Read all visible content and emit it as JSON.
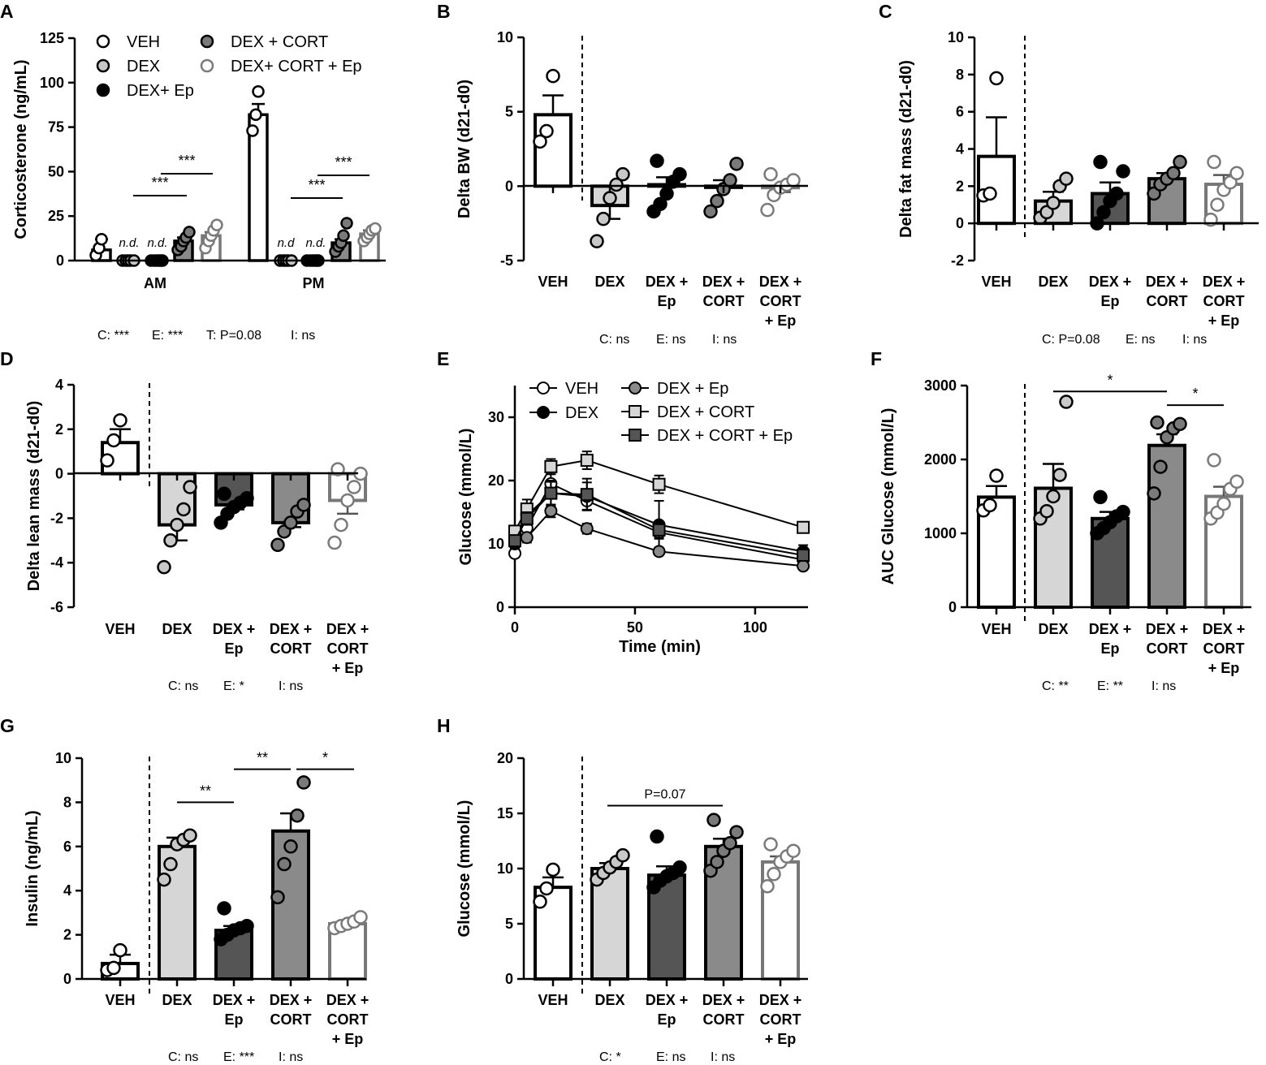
{
  "colors": {
    "VEH": "#ffffff",
    "DEX": "#d6d6d6",
    "DEX+Ep": "#555555",
    "DEX+CORT": "#8a8a8a",
    "DEX+CORT+Ep": "#ffffff",
    "axis": "#000000"
  },
  "chart_data": [
    {
      "id": "A",
      "letter": "A",
      "type": "bar",
      "ylabel": "Corticosterone (ng/mL)",
      "ylim": [
        0,
        125
      ],
      "yticks": [
        "0",
        "25",
        "50",
        "75",
        "100",
        "125"
      ],
      "groups": [
        "AM",
        "PM"
      ],
      "series": [
        {
          "name": "VEH",
          "means": [
            6,
            82
          ],
          "points": [
            [
              3,
              7,
              12
            ],
            [
              73,
              82,
              95
            ]
          ]
        },
        {
          "name": "DEX",
          "means": [
            0,
            0
          ],
          "points": [
            [
              0,
              0,
              0,
              0,
              0
            ],
            [
              0,
              0,
              0,
              0,
              0
            ]
          ]
        },
        {
          "name": "DEX+ Ep",
          "means": [
            0,
            0
          ],
          "points": [
            [
              0,
              0,
              0,
              0,
              0,
              0
            ],
            [
              0,
              0,
              0,
              0,
              0,
              0
            ]
          ]
        },
        {
          "name": "DEX + CORT",
          "means": [
            11,
            10
          ],
          "points": [
            [
              6,
              8,
              11,
              13,
              16
            ],
            [
              5,
              8,
              10,
              14,
              21
            ]
          ]
        },
        {
          "name": "DEX+ CORT + Ep",
          "means": [
            14,
            15
          ],
          "points": [
            [
              7,
              11,
              14,
              17,
              20
            ],
            [
              11,
              13,
              15,
              17,
              18
            ]
          ]
        }
      ],
      "legend": [
        "VEH",
        "DEX",
        "DEX+ Ep",
        "DEX + CORT",
        "DEX+ CORT + Ep"
      ],
      "nd": [
        "n.d.",
        "n.d.",
        "n.d",
        "n.d."
      ],
      "sig": [
        "***",
        "***",
        "***",
        "***"
      ],
      "stats": [
        "C: ***",
        "E: ***",
        "T: P=0.08",
        "I: ns"
      ]
    },
    {
      "id": "B",
      "letter": "B",
      "type": "bar",
      "ylabel": "Delta BW (d21-d0)",
      "ylim": [
        -5,
        10
      ],
      "yticks": [
        "-5",
        "0",
        "5",
        "10"
      ],
      "categories": [
        [
          "VEH"
        ],
        [
          "DEX"
        ],
        [
          "DEX +",
          "Ep"
        ],
        [
          "DEX +",
          "CORT"
        ],
        [
          "DEX +",
          "CORT",
          "+ Ep"
        ]
      ],
      "means": [
        4.8,
        -1.3,
        0.1,
        0.0,
        -0.1
      ],
      "sems": [
        1.3,
        0.9,
        0.5,
        0.4,
        0.3
      ],
      "points": [
        [
          3,
          3.7,
          7.4
        ],
        [
          -3.7,
          -2.2,
          -0.8,
          0.1,
          0.8
        ],
        [
          -1.7,
          -1.2,
          -0.5,
          0.3,
          0.8,
          1.7
        ],
        [
          -1.7,
          -1,
          -0.2,
          0.4,
          1.5
        ],
        [
          -1.6,
          -0.6,
          -0.1,
          0.1,
          0.4,
          0.8
        ]
      ],
      "stats": [
        "C: ns",
        "E: ns",
        "I: ns"
      ]
    },
    {
      "id": "C",
      "letter": "C",
      "type": "bar",
      "ylabel": "Delta fat mass (d21-d0)",
      "ylim": [
        -2,
        10
      ],
      "yticks": [
        "-2",
        "0",
        "2",
        "4",
        "6",
        "8",
        "10"
      ],
      "categories": [
        [
          "VEH"
        ],
        [
          "DEX"
        ],
        [
          "DEX +",
          "Ep"
        ],
        [
          "DEX +",
          "CORT"
        ],
        [
          "DEX +",
          "CORT",
          "+ Ep"
        ]
      ],
      "means": [
        3.6,
        1.2,
        1.6,
        2.4,
        2.1
      ],
      "sems": [
        2.1,
        0.5,
        0.6,
        0.3,
        0.5
      ],
      "points": [
        [
          1.5,
          1.6,
          7.8
        ],
        [
          0.3,
          0.6,
          1.1,
          2,
          2.4
        ],
        [
          0,
          0.6,
          1.2,
          1.6,
          2.8,
          3.3
        ],
        [
          1.6,
          2.1,
          2.4,
          2.7,
          3.3
        ],
        [
          0.2,
          1,
          1.8,
          2.2,
          2.7,
          3.3
        ]
      ],
      "stats": [
        "C: P=0.08",
        "E: ns",
        "I: ns"
      ]
    },
    {
      "id": "D",
      "letter": "D",
      "type": "bar",
      "ylabel": "Delta lean mass (d21-d0)",
      "ylim": [
        -6,
        4
      ],
      "yticks": [
        "-6",
        "-4",
        "-2",
        "0",
        "2",
        "4"
      ],
      "categories": [
        [
          "VEH"
        ],
        [
          "DEX"
        ],
        [
          "DEX +",
          "Ep"
        ],
        [
          "DEX +",
          "CORT"
        ],
        [
          "DEX +",
          "CORT",
          "+ Ep"
        ]
      ],
      "means": [
        1.4,
        -2.3,
        -1.4,
        -2.2,
        -1.2
      ],
      "sems": [
        0.6,
        0.7,
        0.2,
        0.2,
        0.6
      ],
      "points": [
        [
          0.6,
          1.5,
          2.4
        ],
        [
          -4.2,
          -3,
          -2.3,
          -1.6,
          -0.6
        ],
        [
          -2.2,
          -1.8,
          -1.5,
          -1.3,
          -1.1,
          -0.9
        ],
        [
          -3.2,
          -2.6,
          -2.2,
          -1.7,
          -1.4
        ],
        [
          -3.1,
          -2.3,
          -1.2,
          -0.6,
          0,
          0.2
        ]
      ],
      "stats": [
        "C: ns",
        "E: *",
        "I: ns"
      ]
    },
    {
      "id": "E",
      "letter": "E",
      "type": "line",
      "xlabel": "Time (min)",
      "ylabel": "Glucose (mmol/L)",
      "xlim": [
        0,
        122
      ],
      "ylim": [
        0,
        35
      ],
      "xticks": [
        "0",
        "50",
        "100"
      ],
      "yticks": [
        "0",
        "10",
        "20",
        "30"
      ],
      "x": [
        0,
        5,
        15,
        30,
        60,
        120
      ],
      "series": [
        {
          "name": "VEH",
          "marker": "circle",
          "values": [
            8.5,
            12.5,
            19.5,
            16.8,
            11.8,
            7.5
          ],
          "errors": [
            0.6,
            1.0,
            1.5,
            1.4,
            1.0,
            0.5
          ]
        },
        {
          "name": "DEX",
          "marker": "circle",
          "values": [
            10,
            14.5,
            18,
            17.5,
            13,
            8.8
          ],
          "errors": [
            0.8,
            1.2,
            2.0,
            2.2,
            3.8,
            1.0
          ]
        },
        {
          "name": "DEX + Ep",
          "marker": "circle",
          "values": [
            10.5,
            11,
            15.2,
            12.4,
            8.8,
            6.5
          ],
          "errors": [
            0.5,
            0.8,
            1.0,
            0.8,
            0.6,
            0.4
          ]
        },
        {
          "name": "DEX + CORT",
          "marker": "square",
          "values": [
            12,
            15.5,
            22.2,
            23.2,
            19.4,
            12.6
          ],
          "errors": [
            0.8,
            1.5,
            1.2,
            1.4,
            1.4,
            0.8
          ]
        },
        {
          "name": "DEX + CORT + Ep",
          "marker": "square",
          "values": [
            10.5,
            14,
            18,
            17.8,
            12.2,
            8.2
          ],
          "errors": [
            0.7,
            1.0,
            1.8,
            2.5,
            1.2,
            0.6
          ]
        }
      ]
    },
    {
      "id": "F",
      "letter": "F",
      "type": "bar",
      "ylabel": "AUC Glucose (mmol/L)",
      "ylim": [
        0,
        3000
      ],
      "yticks": [
        "0",
        "1000",
        "2000",
        "3000"
      ],
      "categories": [
        [
          "VEH"
        ],
        [
          "DEX"
        ],
        [
          "DEX +",
          "Ep"
        ],
        [
          "DEX +",
          "CORT"
        ],
        [
          "DEX +",
          "CORT",
          "+ Ep"
        ]
      ],
      "means": [
        1490,
        1610,
        1200,
        2190,
        1500
      ],
      "sems": [
        150,
        330,
        90,
        150,
        130
      ],
      "points": [
        [
          1310,
          1380,
          1780
        ],
        [
          1200,
          1300,
          1500,
          1790,
          2780
        ],
        [
          1000,
          1070,
          1150,
          1230,
          1290,
          1490
        ],
        [
          1540,
          1900,
          2300,
          2420,
          2480,
          2500
        ],
        [
          1200,
          1280,
          1400,
          1600,
          1700,
          1990
        ]
      ],
      "sig": [
        "*",
        "*"
      ],
      "stats": [
        "C: **",
        "E: **",
        "I: ns"
      ]
    },
    {
      "id": "G",
      "letter": "G",
      "type": "bar",
      "ylabel": "Insulin (ng/mL)",
      "ylim": [
        0,
        10
      ],
      "yticks": [
        "0",
        "2",
        "4",
        "6",
        "8",
        "10"
      ],
      "categories": [
        [
          "VEH"
        ],
        [
          "DEX"
        ],
        [
          "DEX +",
          "Ep"
        ],
        [
          "DEX +",
          "CORT"
        ],
        [
          "DEX +",
          "CORT",
          "+ Ep"
        ]
      ],
      "means": [
        0.7,
        6.0,
        2.2,
        6.7,
        2.5
      ],
      "sems": [
        0.4,
        0.4,
        0.2,
        0.8,
        0.1
      ],
      "points": [
        [
          0.4,
          0.5,
          1.3
        ],
        [
          4.5,
          5.2,
          6.1,
          6.3,
          6.5
        ],
        [
          1.8,
          2.0,
          2.2,
          2.3,
          2.4,
          3.2
        ],
        [
          3.7,
          5.2,
          6,
          7.4,
          8.9
        ],
        [
          2.3,
          2.4,
          2.5,
          2.6,
          2.8
        ]
      ],
      "sig": [
        "**",
        "**",
        "*"
      ],
      "stats": [
        "C: ns",
        "E: ***",
        "I: ns"
      ]
    },
    {
      "id": "H",
      "letter": "H",
      "type": "bar",
      "ylabel": "Glucose (mmol/L)",
      "ylim": [
        0,
        20
      ],
      "yticks": [
        "0",
        "5",
        "10",
        "15",
        "20"
      ],
      "categories": [
        [
          "VEH"
        ],
        [
          "DEX"
        ],
        [
          "DEX +",
          "Ep"
        ],
        [
          "DEX +",
          "CORT"
        ],
        [
          "DEX +",
          "CORT",
          "+ Ep"
        ]
      ],
      "means": [
        8.3,
        10.0,
        9.4,
        12.0,
        10.6
      ],
      "sems": [
        0.9,
        0.5,
        0.8,
        0.7,
        0.5
      ],
      "points": [
        [
          7,
          8.2,
          9.9
        ],
        [
          9,
          9.6,
          10.1,
          10.6,
          11.2
        ],
        [
          8.3,
          8.9,
          9.3,
          9.6,
          10.1,
          12.9
        ],
        [
          9.8,
          10.6,
          11.6,
          12.3,
          13.3,
          14.4
        ],
        [
          8.4,
          9.5,
          10.6,
          11.1,
          11.6,
          12.2
        ]
      ],
      "sig": [
        "P=0.07"
      ],
      "stats": [
        "C: *",
        "E: ns",
        "I: ns"
      ]
    }
  ]
}
